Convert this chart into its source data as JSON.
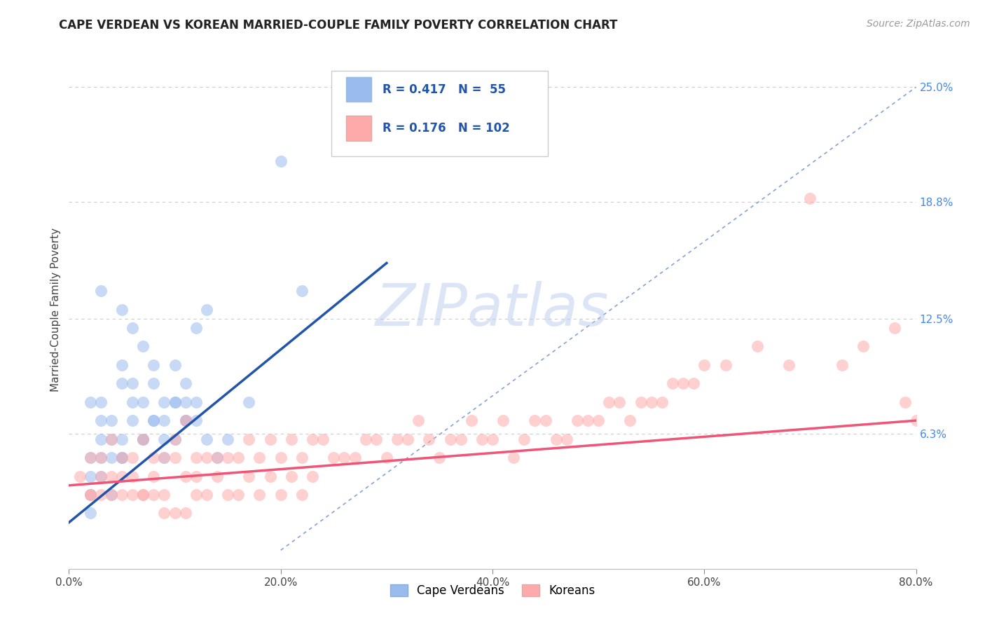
{
  "title": "CAPE VERDEAN VS KOREAN MARRIED-COUPLE FAMILY POVERTY CORRELATION CHART",
  "source_text": "Source: ZipAtlas.com",
  "ylabel": "Married-Couple Family Poverty",
  "xlim": [
    0,
    80
  ],
  "ylim": [
    -1,
    27
  ],
  "ymin_data": 0,
  "ymax_data": 25,
  "xtick_labels": [
    "0.0%",
    "20.0%",
    "40.0%",
    "60.0%",
    "80.0%"
  ],
  "xtick_positions": [
    0,
    20,
    40,
    60,
    80
  ],
  "right_ytick_vals": [
    6.3,
    12.5,
    18.8,
    25.0
  ],
  "right_ytick_labels": [
    "6.3%",
    "12.5%",
    "18.8%",
    "25.0%"
  ],
  "blue_scatter_color": "#99BBEE",
  "pink_scatter_color": "#FFAAAA",
  "blue_line_color": "#2255AA",
  "pink_line_color": "#EE5577",
  "diagonal_color": "#7799CC",
  "grid_color": "#CCCCCC",
  "watermark": "ZIPatlas",
  "watermark_color": "#BBCCEE",
  "background_color": "#FFFFFF",
  "cv_x": [
    3,
    3,
    4,
    5,
    5,
    6,
    6,
    7,
    7,
    8,
    8,
    9,
    9,
    10,
    10,
    11,
    11,
    12,
    12,
    13,
    2,
    2,
    3,
    4,
    5,
    5,
    6,
    7,
    8,
    9,
    10,
    11,
    2,
    3,
    3,
    4,
    5,
    6,
    7,
    8,
    9,
    10,
    11,
    12,
    13,
    14,
    15,
    17,
    20,
    22,
    2,
    2,
    3,
    4,
    5
  ],
  "cv_y": [
    7,
    14,
    5,
    9,
    13,
    8,
    12,
    6,
    11,
    10,
    9,
    8,
    7,
    8,
    10,
    9,
    7,
    12,
    8,
    13,
    5,
    8,
    6,
    7,
    10,
    6,
    9,
    8,
    7,
    6,
    8,
    7,
    4,
    5,
    8,
    6,
    5,
    7,
    6,
    7,
    5,
    6,
    8,
    7,
    6,
    5,
    6,
    8,
    21,
    14,
    3,
    2,
    4,
    3,
    5
  ],
  "kr_x": [
    1,
    2,
    2,
    3,
    3,
    4,
    4,
    5,
    5,
    6,
    6,
    7,
    7,
    8,
    8,
    9,
    9,
    10,
    10,
    11,
    11,
    12,
    12,
    13,
    14,
    15,
    16,
    17,
    18,
    19,
    20,
    21,
    22,
    23,
    24,
    25,
    26,
    27,
    28,
    29,
    30,
    31,
    32,
    33,
    34,
    35,
    36,
    37,
    38,
    39,
    40,
    41,
    42,
    43,
    44,
    45,
    46,
    47,
    48,
    49,
    50,
    51,
    52,
    53,
    54,
    55,
    56,
    57,
    58,
    59,
    60,
    62,
    65,
    68,
    70,
    73,
    75,
    78,
    79,
    80,
    2,
    3,
    4,
    5,
    6,
    7,
    8,
    9,
    10,
    11,
    12,
    13,
    14,
    15,
    16,
    17,
    18,
    19,
    20,
    21,
    22,
    23
  ],
  "kr_y": [
    4,
    5,
    3,
    5,
    4,
    4,
    6,
    3,
    5,
    5,
    4,
    3,
    6,
    4,
    5,
    3,
    5,
    5,
    6,
    4,
    7,
    5,
    4,
    5,
    5,
    5,
    5,
    6,
    5,
    6,
    5,
    6,
    5,
    6,
    6,
    5,
    5,
    5,
    6,
    6,
    5,
    6,
    6,
    7,
    6,
    5,
    6,
    6,
    7,
    6,
    6,
    7,
    5,
    6,
    7,
    7,
    6,
    6,
    7,
    7,
    7,
    8,
    8,
    7,
    8,
    8,
    8,
    9,
    9,
    9,
    10,
    10,
    11,
    10,
    19,
    10,
    11,
    12,
    8,
    7,
    3,
    3,
    3,
    4,
    3,
    3,
    3,
    2,
    2,
    2,
    3,
    3,
    4,
    3,
    3,
    4,
    3,
    4,
    3,
    4,
    3,
    4
  ],
  "cv_reg_x0": 0,
  "cv_reg_y0": 1.5,
  "cv_reg_x1": 30,
  "cv_reg_y1": 15.5,
  "kr_reg_x0": 0,
  "kr_reg_y0": 3.5,
  "kr_reg_x1": 80,
  "kr_reg_y1": 7.0
}
